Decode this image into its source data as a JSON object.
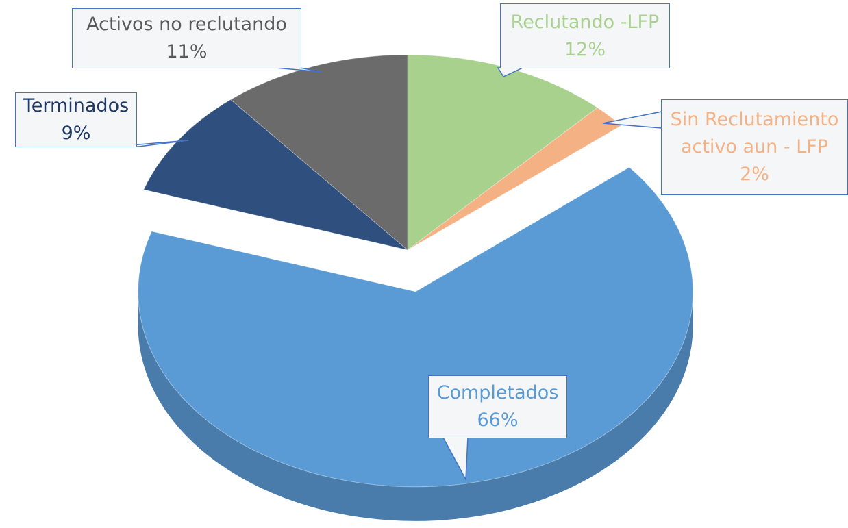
{
  "chart_data": {
    "type": "pie",
    "categories": [
      "Reclutando -LFP",
      "Sin Reclutamiento activo aun - LFP",
      "Completados",
      "Terminados",
      "Activos no reclutando"
    ],
    "values": [
      12,
      2,
      66,
      9,
      11
    ],
    "value_labels": [
      "12%",
      "2%",
      "66%",
      "9%",
      "11%"
    ],
    "colors": [
      "#a9d18e",
      "#f4b183",
      "#5b9bd5",
      "#2f4f7f",
      "#6b6b6b"
    ]
  }
}
